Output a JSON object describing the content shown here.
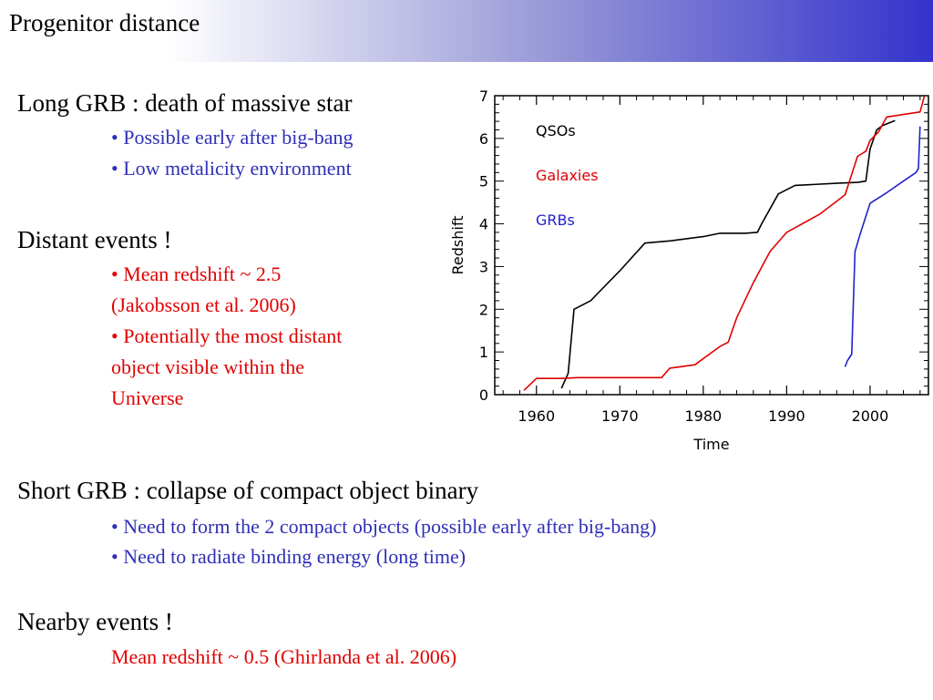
{
  "slide": {
    "title": "Progenitor distance",
    "long_grb": {
      "heading": "Long GRB : death of massive star",
      "bullets": [
        "• Possible early after big-bang",
        "• Low metalicity environment"
      ]
    },
    "distant": {
      "heading": "Distant events !",
      "lines": [
        "• Mean redshift ~ 2.5",
        "(Jakobsson et al. 2006)",
        "• Potentially the most distant",
        "object visible within the",
        "Universe"
      ]
    },
    "short_grb": {
      "heading": "Short GRB : collapse of compact object binary",
      "bullets": [
        "• Need to form the 2 compact objects (possible early after big-bang)",
        "• Need to radiate binding energy (long time)"
      ]
    },
    "nearby": {
      "heading": "Nearby events !",
      "line": "Mean redshift ~ 0.5 (Ghirlanda et al. 2006)"
    }
  },
  "colors": {
    "blue_text": "#2f2fb8",
    "red_text": "#e00000",
    "title_gradient_end": "#3333cc"
  },
  "chart_data": {
    "type": "line",
    "xlabel": "Time",
    "ylabel": "Redshift",
    "xlim": [
      1955,
      2007
    ],
    "ylim": [
      0,
      7
    ],
    "xticks": [
      1960,
      1970,
      1980,
      1990,
      2000
    ],
    "yticks": [
      0,
      1,
      2,
      3,
      4,
      5,
      6,
      7
    ],
    "grid": false,
    "series": [
      {
        "name": "QSOs",
        "color": "#000000",
        "x": [
          1963,
          1963.8,
          1964.5,
          1966.5,
          1967.5,
          1970,
          1973,
          1976,
          1980,
          1982,
          1985,
          1986.5,
          1987,
          1988,
          1989,
          1991,
          1993,
          1996,
          1998.5,
          1999.5,
          2000,
          2000.8,
          2001.5,
          2003
        ],
        "y": [
          0.15,
          0.5,
          2.0,
          2.2,
          2.4,
          2.9,
          3.55,
          3.6,
          3.7,
          3.78,
          3.78,
          3.8,
          4.0,
          4.35,
          4.7,
          4.9,
          4.92,
          4.95,
          4.97,
          5.0,
          5.75,
          6.2,
          6.3,
          6.42
        ]
      },
      {
        "name": "Galaxies",
        "color": "#e00000",
        "x": [
          1958.5,
          1960,
          1963,
          1965,
          1970,
          1975,
          1976,
          1979,
          1982,
          1983,
          1984,
          1986,
          1988,
          1990,
          1994,
          1997,
          1998.5,
          1999.5,
          2000,
          2001,
          2002,
          2004,
          2006,
          2006.5
        ],
        "y": [
          0.1,
          0.38,
          0.38,
          0.4,
          0.4,
          0.4,
          0.62,
          0.7,
          1.13,
          1.23,
          1.8,
          2.62,
          3.35,
          3.8,
          4.23,
          4.68,
          5.58,
          5.7,
          5.95,
          6.15,
          6.5,
          6.56,
          6.62,
          6.98
        ]
      },
      {
        "name": "GRBs",
        "color": "#2222cc",
        "x": [
          1997,
          1997.3,
          1997.8,
          1998.2,
          1998.8,
          2000,
          2002,
          2004,
          2005.5,
          2005.8,
          2006
        ],
        "y": [
          0.65,
          0.8,
          0.95,
          3.35,
          3.75,
          4.48,
          4.73,
          5.0,
          5.2,
          5.3,
          6.28
        ]
      }
    ]
  }
}
